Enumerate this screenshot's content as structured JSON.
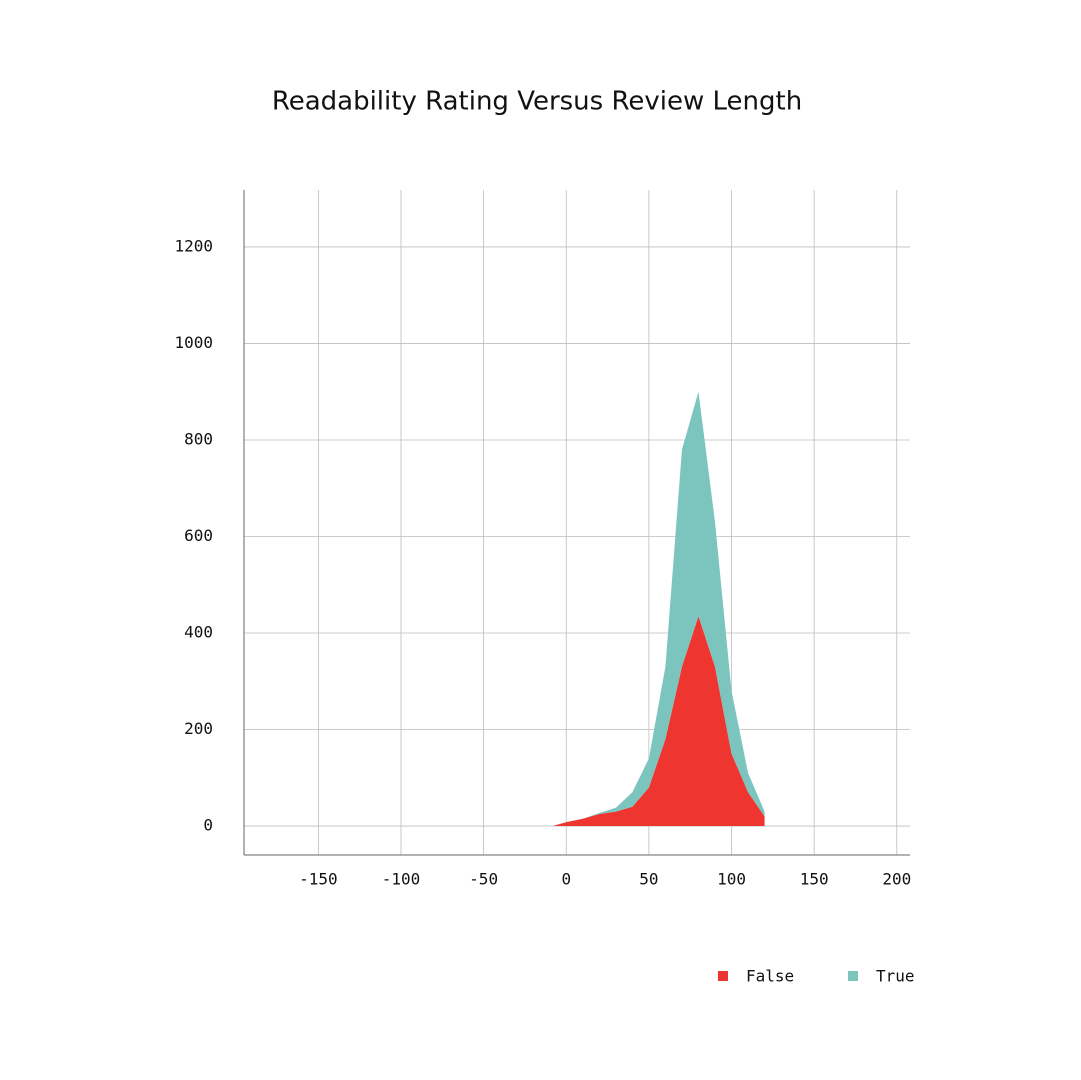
{
  "chart_data": {
    "type": "area",
    "stacked": true,
    "title": "Readability Rating Versus Review Length",
    "x": [
      -8,
      0,
      10,
      20,
      30,
      40,
      50,
      60,
      70,
      80,
      90,
      100,
      110,
      120
    ],
    "series": [
      {
        "name": "False",
        "color": "#ee3530",
        "values": [
          0,
          8,
          15,
          25,
          30,
          40,
          80,
          180,
          330,
          435,
          330,
          150,
          70,
          20
        ]
      },
      {
        "name": "True",
        "color": "#7cc5bf",
        "values": [
          0,
          0,
          0,
          2,
          8,
          30,
          60,
          150,
          450,
          465,
          300,
          130,
          40,
          10
        ]
      }
    ],
    "xlim": [
      -195,
      208
    ],
    "xticks": [
      -150,
      -100,
      -50,
      0,
      50,
      100,
      150,
      200
    ],
    "ylim": [
      -60,
      1318
    ],
    "yticks": [
      0,
      200,
      400,
      600,
      800,
      1000,
      1200
    ],
    "grid": true,
    "legend": "bottom-right"
  }
}
